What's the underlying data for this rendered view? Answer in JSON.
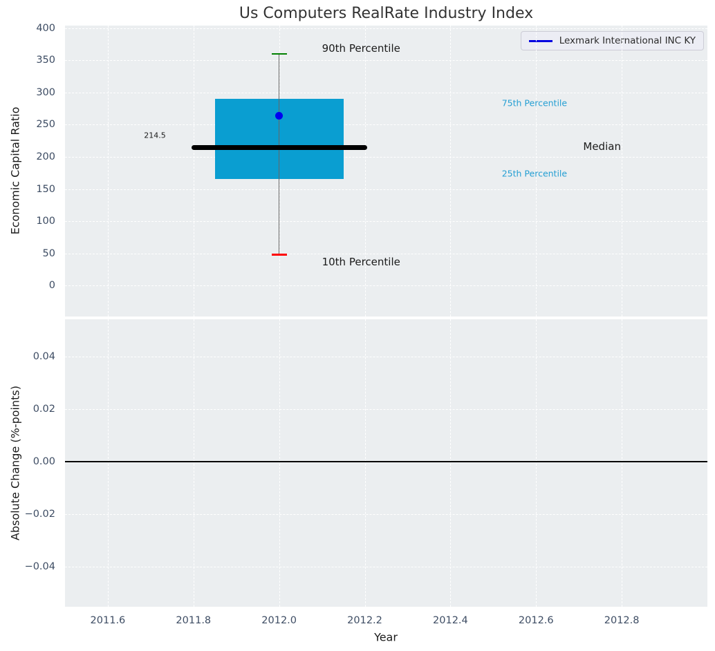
{
  "figure": {
    "title": "Us Computers RealRate Industry Index",
    "background": "#ffffff"
  },
  "legend": {
    "label": "Lexmark International INC KY",
    "line_color": "#0000e0"
  },
  "colors": {
    "plot_background": "#ebeef0",
    "grid": "#ffffff",
    "tick_label": "#3d4c63",
    "title": "#333333",
    "text": "#1a1a1a",
    "box_fill": "#0a9ed1",
    "median_line": "#000000",
    "whisker": "#666666",
    "cap_90th": "#008000",
    "cap_10th": "#ff0000",
    "company_dot": "#0000f0",
    "percentile_text": "#259fd3",
    "zero_line": "#000000"
  },
  "chart_data": [
    {
      "type": "boxplot",
      "title": "Us Computers RealRate Industry Index",
      "ylabel": "Economic Capital Ratio",
      "xlim": [
        2011.5,
        2013.0
      ],
      "ylim": [
        -48,
        404
      ],
      "grid": true,
      "legend_position": "upper right",
      "xtick_values": [
        2011.6,
        2011.8,
        2012.0,
        2012.2,
        2012.4,
        2012.6,
        2012.8
      ],
      "xtick_labels": [
        "2011.6",
        "2011.8",
        "2012.0",
        "2012.2",
        "2012.4",
        "2012.6",
        "2012.8"
      ],
      "ytick_values": [
        400,
        350,
        300,
        250,
        200,
        150,
        100,
        50,
        0
      ],
      "ytick_labels": [
        "400",
        "350",
        "300",
        "250",
        "200",
        "150",
        "100",
        "50",
        "0"
      ],
      "box": {
        "x": 2012.0,
        "p90": 360,
        "p75": 290,
        "median": 214.5,
        "p25": 166,
        "p10": 48,
        "box_halfwidth": 0.15,
        "median_halfwidth": 0.2,
        "cap_halfwidth": 0.018
      },
      "company_point": {
        "name": "Lexmark International INC KY",
        "x": 2012.0,
        "value": 264
      },
      "annotations": [
        {
          "id": "90th-percentile-label",
          "text": "90th Percentile",
          "x": 2012.1,
          "y": 369,
          "size": 15,
          "color": "#1a1a1a",
          "anchor": "left"
        },
        {
          "id": "75th-percentile-label",
          "text": "75th Percentile",
          "x": 2012.52,
          "y": 284,
          "size": 12.5,
          "color": "#259fd3",
          "anchor": "left"
        },
        {
          "id": "median-label",
          "text": "Median",
          "x": 2012.71,
          "y": 216,
          "size": 15,
          "color": "#1a1a1a",
          "anchor": "left"
        },
        {
          "id": "25th-percentile-label",
          "text": "25th Percentile",
          "x": 2012.52,
          "y": 174,
          "size": 12.5,
          "color": "#259fd3",
          "anchor": "left"
        },
        {
          "id": "10th-percentile-label",
          "text": "10th Percentile",
          "x": 2012.1,
          "y": 37,
          "size": 15,
          "color": "#1a1a1a",
          "anchor": "left"
        },
        {
          "id": "median-value-label",
          "text": "214.5",
          "x": 2011.71,
          "y": 233,
          "size": 11,
          "color": "#1a1a1a",
          "anchor": "center"
        }
      ]
    },
    {
      "type": "line",
      "ylabel": "Absolute Change (%-points)",
      "xlabel": "Year",
      "xlim": [
        2011.5,
        2013.0
      ],
      "ylim": [
        -0.0552,
        0.0541
      ],
      "grid": true,
      "xtick_values": [
        2011.6,
        2011.8,
        2012.0,
        2012.2,
        2012.4,
        2012.6,
        2012.8
      ],
      "xtick_labels": [
        "2011.6",
        "2011.8",
        "2012.0",
        "2012.2",
        "2012.4",
        "2012.6",
        "2012.8"
      ],
      "ytick_values": [
        0.04,
        0.02,
        0.0,
        -0.02,
        -0.04
      ],
      "ytick_labels": [
        "0.04",
        "0.02",
        "0.00",
        "−0.02",
        "−0.04"
      ],
      "zero_line_y": 0.0
    }
  ]
}
